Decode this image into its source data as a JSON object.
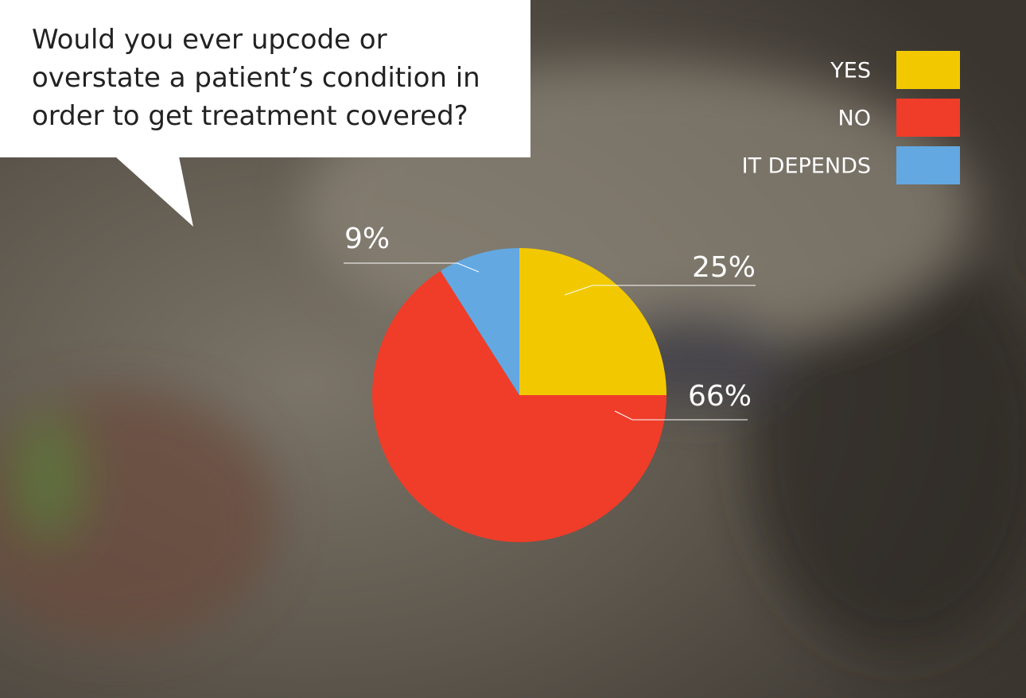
{
  "chart_data": {
    "type": "pie",
    "title": "Would you ever upcode or overstate a patient’s condition in order to get treatment covered?",
    "categories": [
      "YES",
      "NO",
      "IT DEPENDS"
    ],
    "values": [
      25,
      66,
      9
    ],
    "value_labels": [
      "25%",
      "66%",
      "9%"
    ],
    "colors": [
      "#f2c900",
      "#ef3d29",
      "#63a8e1"
    ],
    "legend": "top-right"
  }
}
